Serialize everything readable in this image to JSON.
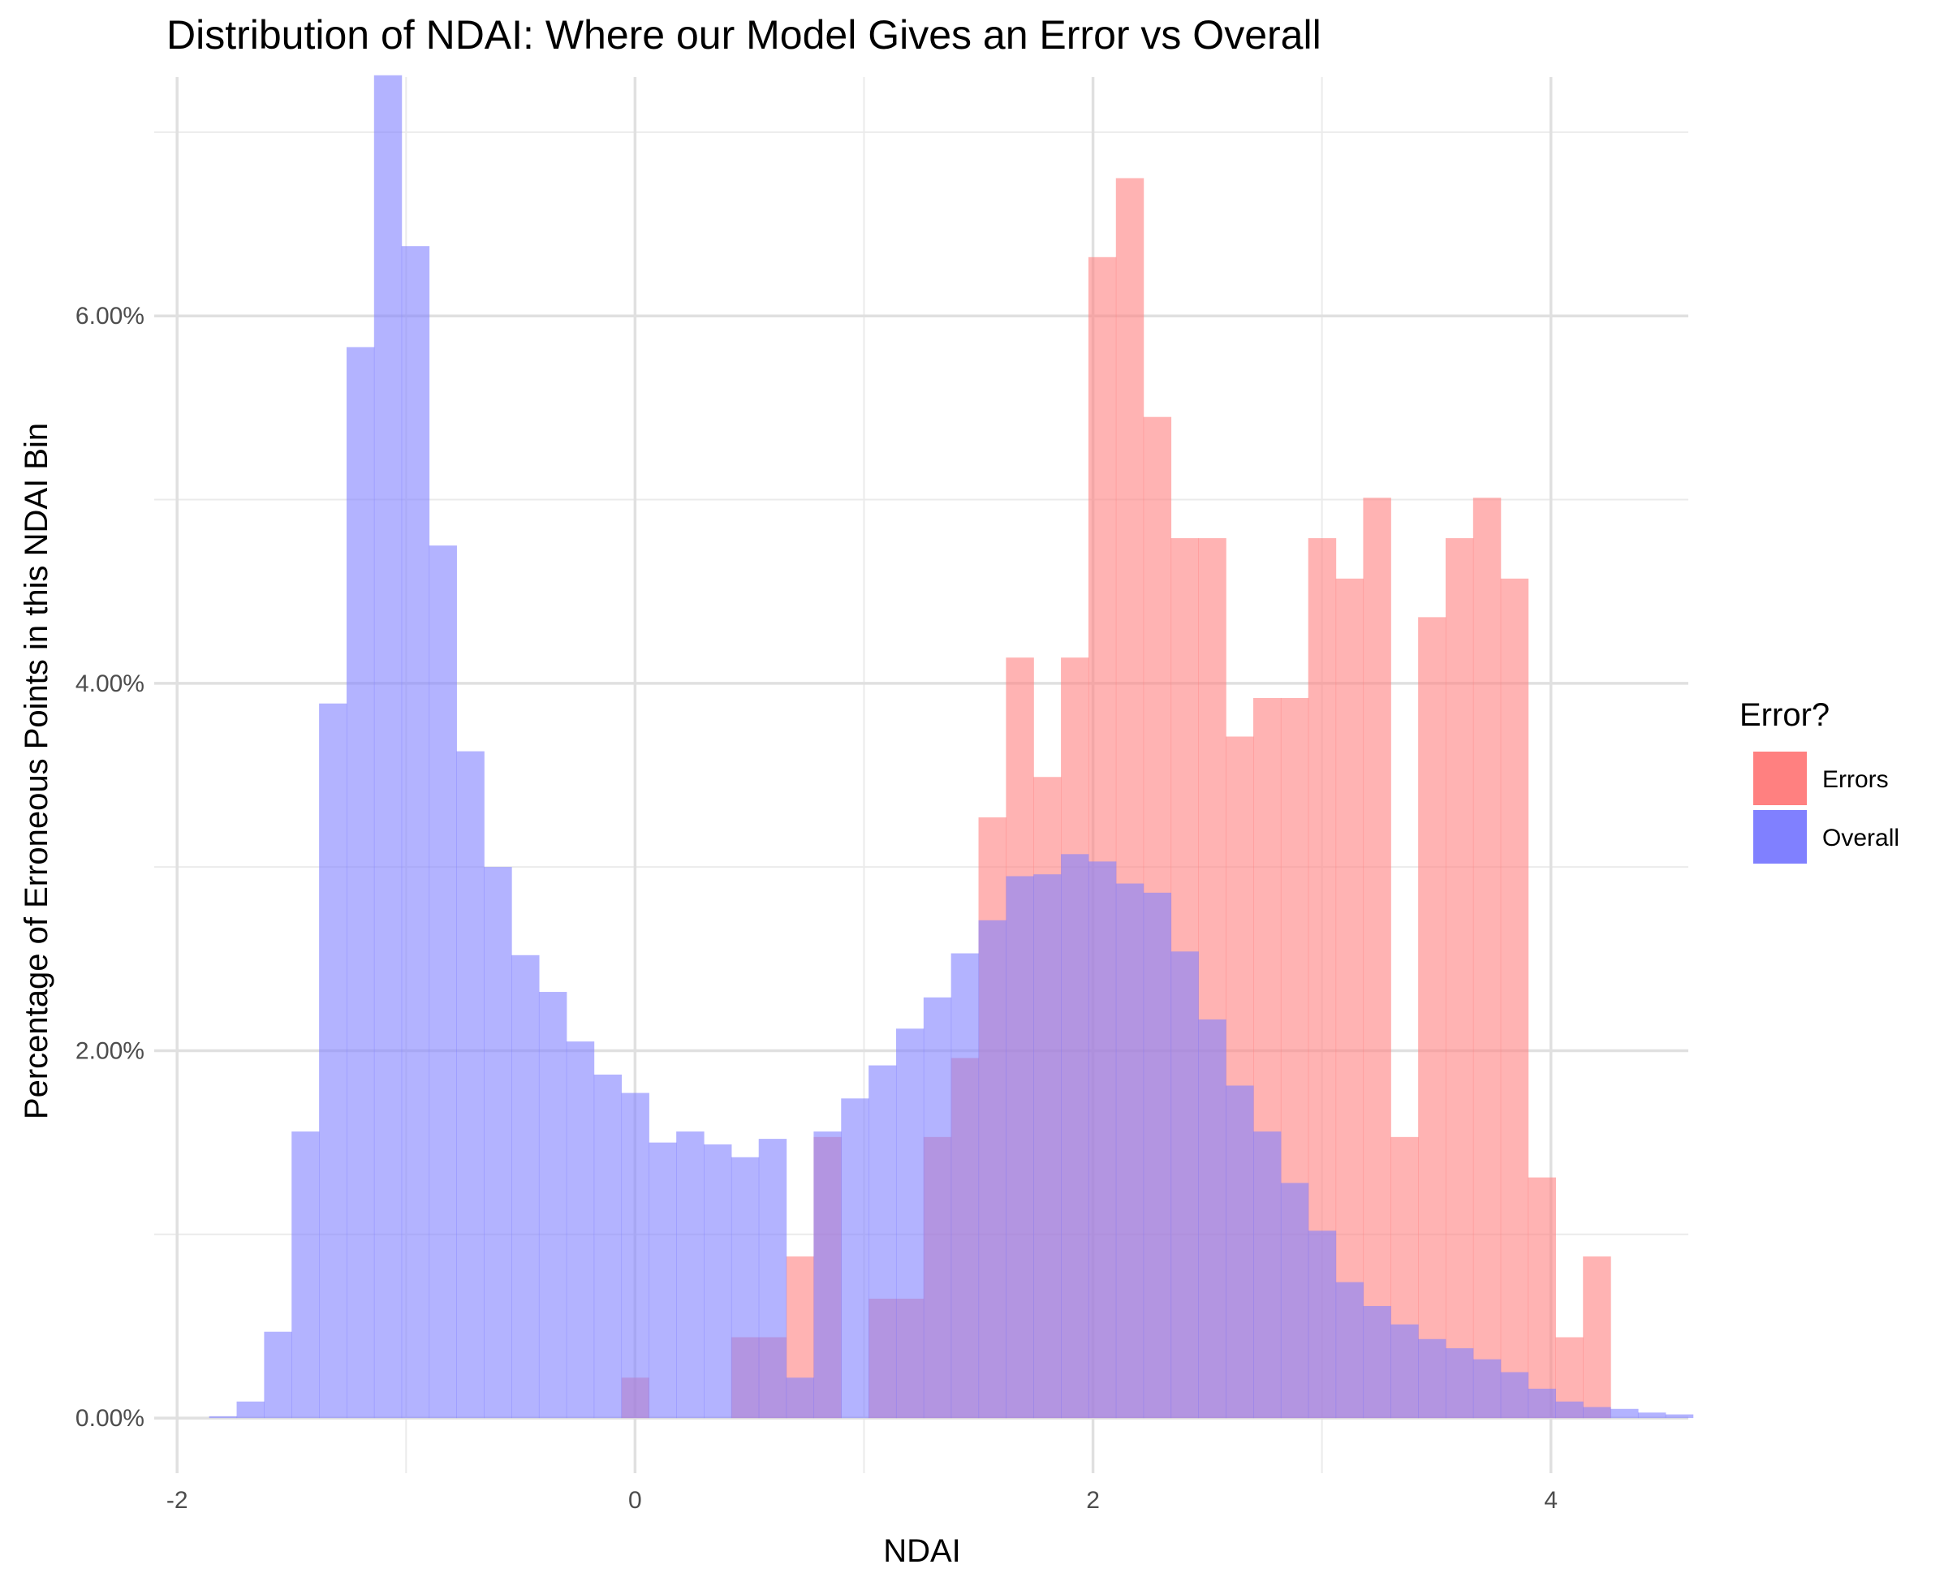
{
  "chart_data": {
    "type": "bar",
    "title": "Distribution of NDAI: Where our Model Gives an Error vs Overall",
    "xlabel": "NDAI",
    "ylabel": "Percentage of Erroneous Points in this NDAI Bin",
    "xlim": [
      -2.1,
      4.6
    ],
    "ylim": [
      -0.3,
      7.3
    ],
    "x_ticks": [
      -2,
      0,
      2,
      4
    ],
    "x_tick_labels": [
      "-2",
      "0",
      "2",
      "4"
    ],
    "y_ticks": [
      0,
      2,
      4,
      6
    ],
    "y_tick_labels": [
      "0.00%",
      "2.00%",
      "4.00%",
      "6.00%"
    ],
    "y_minor_ticks": [
      1,
      3,
      5,
      7
    ],
    "x_minor_ticks": [
      -1,
      1,
      3
    ],
    "grid": true,
    "bin_width": 0.12,
    "legend": {
      "title": "Error?",
      "position": "right",
      "entries": [
        {
          "name": "Errors",
          "color": "#ff8080"
        },
        {
          "name": "Overall",
          "color": "#8080ff"
        }
      ]
    },
    "series": [
      {
        "name": "Errors",
        "color": "#ff8080",
        "opacity": 0.6,
        "x_start": -0.06,
        "values": [
          0.22,
          0,
          0,
          0,
          0.44,
          0.44,
          0.88,
          1.53,
          0,
          0.65,
          0.65,
          1.53,
          1.96,
          3.27,
          4.14,
          3.49,
          4.14,
          6.32,
          6.75,
          5.45,
          4.79,
          4.79,
          3.71,
          3.92,
          3.92,
          4.79,
          4.57,
          5.01,
          1.53,
          4.36,
          4.79,
          5.01,
          4.57,
          1.31,
          0.44,
          0.88
        ]
      },
      {
        "name": "Overall",
        "color": "#8080ff",
        "opacity": 0.6,
        "x_start": -1.86,
        "values": [
          0.01,
          0.09,
          0.47,
          1.56,
          3.89,
          5.83,
          7.31,
          6.38,
          4.75,
          3.63,
          3.0,
          2.52,
          2.32,
          2.05,
          1.87,
          1.77,
          1.5,
          1.56,
          1.49,
          1.42,
          1.52,
          0.22,
          1.56,
          1.74,
          1.92,
          2.12,
          2.29,
          2.53,
          2.71,
          2.95,
          2.96,
          3.07,
          3.03,
          2.91,
          2.86,
          2.54,
          2.17,
          1.81,
          1.56,
          1.28,
          1.02,
          0.74,
          0.61,
          0.51,
          0.43,
          0.38,
          0.32,
          0.25,
          0.16,
          0.09,
          0.06,
          0.05,
          0.03,
          0.02
        ]
      }
    ]
  }
}
